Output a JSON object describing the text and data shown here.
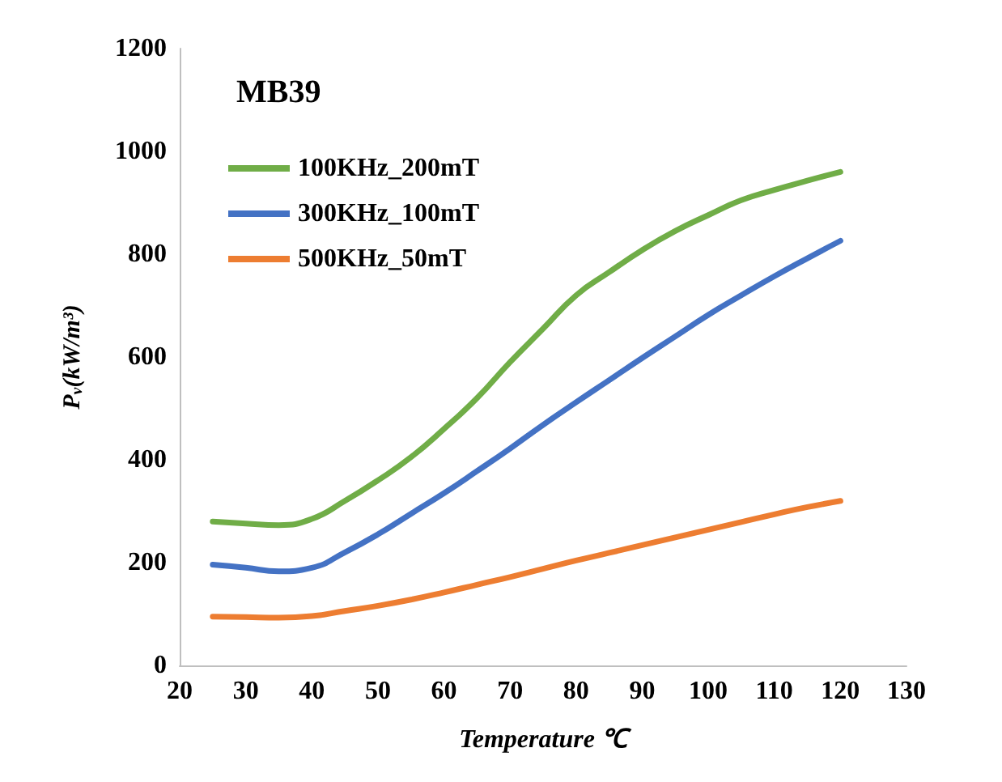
{
  "chart_data": {
    "type": "line",
    "title": "MB39",
    "xlabel": "Temperature ℃",
    "ylabel": "P$_{v}$(kW/m³)",
    "x": [
      25,
      30,
      35,
      40,
      45,
      50,
      55,
      60,
      65,
      70,
      75,
      80,
      85,
      90,
      95,
      100,
      105,
      110,
      115,
      120
    ],
    "series": [
      {
        "name": "100KHz_200mT",
        "color": "#70ad47",
        "values": [
          280,
          276,
          273,
          285,
          320,
          360,
          405,
          460,
          520,
          590,
          655,
          720,
          765,
          808,
          845,
          876,
          905,
          925,
          943,
          960
        ]
      },
      {
        "name": "300KHz_100mT",
        "color": "#4472c4",
        "values": [
          196,
          190,
          183,
          190,
          220,
          255,
          295,
          335,
          378,
          422,
          468,
          512,
          555,
          598,
          640,
          682,
          720,
          757,
          792,
          826
        ]
      },
      {
        "name": "500KHz_50mT",
        "color": "#ed7d31",
        "values": [
          95,
          94,
          93,
          96,
          106,
          116,
          128,
          142,
          157,
          172,
          188,
          204,
          219,
          234,
          249,
          264,
          279,
          294,
          308,
          320
        ]
      }
    ],
    "xlim": [
      20,
      130
    ],
    "xticks": [
      20,
      30,
      40,
      50,
      60,
      70,
      80,
      90,
      100,
      110,
      120,
      130
    ],
    "ylim": [
      0,
      1200
    ],
    "yticks": [
      0,
      200,
      400,
      600,
      800,
      1000,
      1200
    ],
    "grid": false,
    "legend": "top left",
    "marker": "none",
    "line_style": "solid"
  }
}
